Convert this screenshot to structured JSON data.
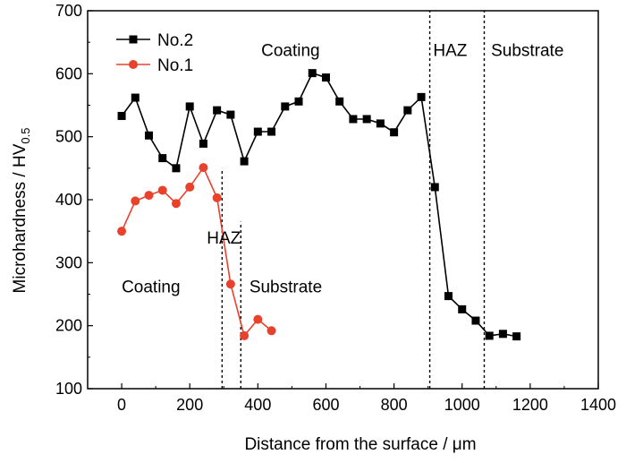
{
  "chart_data": {
    "type": "line",
    "xlabel": "Distance from the surface / μm",
    "ylabel_main": "Microhardness / HV",
    "ylabel_sub": "0.5",
    "xlim": [
      -100,
      1400
    ],
    "ylim": [
      100,
      700
    ],
    "xticks": [
      0,
      200,
      400,
      600,
      800,
      1000,
      1200,
      1400
    ],
    "yticks": [
      100,
      200,
      300,
      400,
      500,
      600,
      700
    ],
    "legend_position": "top-left",
    "grid": false,
    "series": [
      {
        "name": "No.2",
        "color": "#000000",
        "marker": "square",
        "x": [
          0,
          40,
          80,
          120,
          160,
          200,
          240,
          280,
          320,
          360,
          400,
          440,
          480,
          520,
          560,
          600,
          640,
          680,
          720,
          760,
          800,
          840,
          880,
          920,
          960,
          1000,
          1040,
          1080,
          1120,
          1160
        ],
        "y": [
          533,
          562,
          502,
          466,
          450,
          548,
          489,
          542,
          535,
          461,
          508,
          508,
          548,
          556,
          601,
          594,
          556,
          528,
          528,
          521,
          507,
          542,
          563,
          420,
          247,
          226,
          208,
          184,
          187,
          183
        ]
      },
      {
        "name": "No.1",
        "color": "#e8412c",
        "marker": "circle",
        "x": [
          0,
          40,
          80,
          120,
          160,
          200,
          240,
          280,
          320,
          360,
          400,
          440
        ],
        "y": [
          350,
          398,
          407,
          415,
          394,
          420,
          451,
          403,
          266,
          184,
          210,
          192
        ]
      }
    ],
    "boundaries": [
      {
        "x": 295,
        "ymax": 450
      },
      {
        "x": 350,
        "ymax": 365
      },
      {
        "x": 905,
        "ymax": 700
      },
      {
        "x": 1065,
        "ymax": 700
      }
    ],
    "annotations": [
      {
        "text": "Coating",
        "x": 410,
        "y": 628,
        "anchor": "start"
      },
      {
        "text": "HAZ",
        "x": 915,
        "y": 628,
        "anchor": "start"
      },
      {
        "text": "Substrate",
        "x": 1085,
        "y": 628,
        "anchor": "start"
      },
      {
        "text": "HAZ",
        "x": 250,
        "y": 330,
        "anchor": "start"
      },
      {
        "text": "Coating",
        "x": 0,
        "y": 253,
        "anchor": "start"
      },
      {
        "text": "Substrate",
        "x": 375,
        "y": 253,
        "anchor": "start"
      }
    ]
  }
}
